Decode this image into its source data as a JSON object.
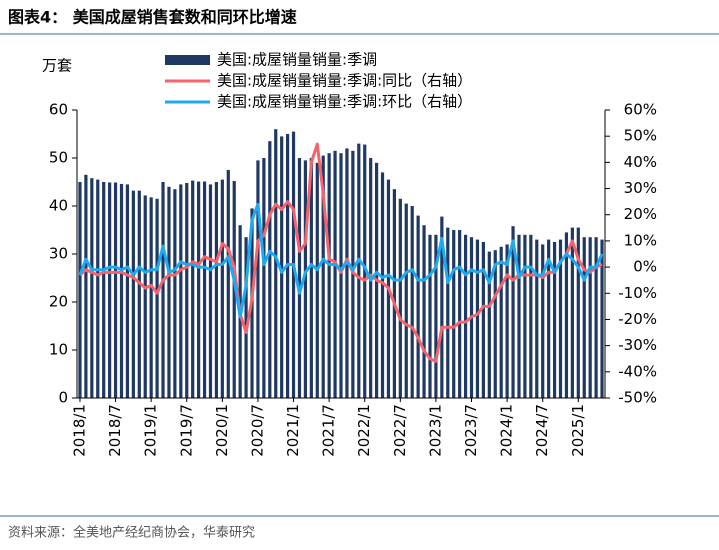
{
  "chart_data": {
    "type": "bar_line",
    "title": "图表4：  美国成屋销售套数和同环比增速",
    "y_label": "万套",
    "source": "资料来源：全美地产经纪商协会，华泰研究",
    "categories": [
      "2018/1",
      null,
      null,
      null,
      null,
      null,
      "2018/7",
      null,
      null,
      null,
      null,
      null,
      "2019/1",
      null,
      null,
      null,
      null,
      null,
      "2019/7",
      null,
      null,
      null,
      null,
      null,
      "2020/1",
      null,
      null,
      null,
      null,
      null,
      "2020/7",
      null,
      null,
      null,
      null,
      null,
      "2021/1",
      null,
      null,
      null,
      null,
      null,
      "2021/7",
      null,
      null,
      null,
      null,
      null,
      "2022/1",
      null,
      null,
      null,
      null,
      null,
      "2022/7",
      null,
      null,
      null,
      null,
      null,
      "2023/1",
      null,
      null,
      null,
      null,
      null,
      "2023/7",
      null,
      null,
      null,
      null,
      null,
      "2024/1",
      null,
      null,
      null,
      null,
      null,
      "2024/7",
      null,
      null,
      null,
      null,
      null,
      "2025/1",
      null,
      null,
      null,
      null
    ],
    "series": [
      {
        "name": "美国:成屋销量销量:季调",
        "type": "bar",
        "color": "#1f3864",
        "axis": "y",
        "values": [
          45.0,
          46.5,
          45.8,
          45.5,
          45.0,
          44.9,
          44.9,
          44.6,
          44.5,
          43.2,
          43.2,
          42.2,
          41.8,
          41.5,
          45.0,
          44.0,
          43.5,
          44.5,
          44.8,
          45.3,
          45.1,
          45.1,
          44.5,
          45.0,
          45.5,
          47.5,
          45.2,
          36.0,
          33.5,
          39.5,
          49.5,
          50.0,
          53.5,
          56.0,
          54.5,
          55.0,
          55.5,
          50.0,
          49.5,
          50.0,
          49.0,
          50.5,
          51.0,
          51.5,
          51.0,
          52.0,
          51.5,
          53.0,
          52.8,
          50.0,
          49.0,
          47.0,
          45.5,
          43.5,
          41.5,
          40.5,
          40.0,
          38.0,
          36.0,
          34.0,
          34.0,
          37.8,
          35.5,
          35.0,
          35.0,
          34.0,
          33.5,
          33.0,
          32.5,
          30.5,
          30.8,
          31.5,
          32.0,
          35.8,
          34.0,
          34.0,
          34.0,
          33.0,
          32.0,
          33.0,
          32.5,
          33.0,
          34.5,
          35.5,
          35.5,
          33.5,
          33.5,
          33.5,
          33.0
        ]
      },
      {
        "name": "美国:成屋销量销量:季调:同比（右轴）",
        "type": "line",
        "color": "#f4646a",
        "axis": "y2",
        "values": [
          -3,
          -1,
          -2,
          -3,
          -2,
          -2,
          -2,
          -2,
          -3,
          -4,
          -6,
          -8,
          -7,
          -10,
          -5,
          -3,
          -3,
          -1,
          0,
          2,
          1,
          4,
          3,
          2,
          9,
          7,
          0,
          -18,
          -25,
          -12,
          10,
          12,
          20,
          24,
          22,
          25,
          22,
          6,
          9,
          40,
          47,
          28,
          3,
          2,
          -2,
          3,
          -2,
          -4,
          -5,
          -3,
          -5,
          -6,
          -8,
          -14,
          -20,
          -22,
          -23,
          -27,
          -32,
          -35,
          -36,
          -23,
          -23,
          -23,
          -21,
          -21,
          -19,
          -18,
          -15,
          -15,
          -11,
          -7,
          -3,
          -5,
          -3,
          -3,
          -3,
          -3,
          -4,
          -2,
          -2,
          2,
          5,
          10,
          3,
          -1,
          -2,
          0,
          1
        ]
      },
      {
        "name": "美国:成屋销量销量:季调:环比（右轴）",
        "type": "line",
        "color": "#1eaaf1",
        "axis": "y2",
        "values": [
          -3,
          3,
          -1,
          -1,
          -1,
          0,
          0,
          -1,
          0,
          -3,
          0,
          -2,
          -1,
          -1,
          8,
          -2,
          -1,
          2,
          1,
          1,
          0,
          0,
          -1,
          1,
          1,
          4,
          -5,
          -19,
          -7,
          18,
          24,
          1,
          6,
          4,
          -2,
          1,
          1,
          -10,
          -2,
          1,
          -1,
          3,
          1,
          1,
          -1,
          2,
          -1,
          3,
          0,
          -5,
          -2,
          -4,
          -3,
          -5,
          -5,
          -2,
          -1,
          -5,
          -5,
          -3,
          0,
          11,
          -6,
          -1,
          0,
          -3,
          -1,
          -2,
          -1,
          -6,
          1,
          2,
          1,
          10,
          -4,
          0,
          0,
          -3,
          -3,
          3,
          -2,
          2,
          5,
          3,
          0,
          -5,
          0,
          0,
          5
        ]
      }
    ],
    "ylim": [
      0,
      60
    ],
    "yticks": [
      0,
      10,
      20,
      30,
      40,
      50,
      60
    ],
    "y2lim": [
      -50,
      60
    ],
    "y2ticks": [
      {
        "value": -50,
        "label": "-50%"
      },
      {
        "value": -40,
        "label": "-40%"
      },
      {
        "value": -30,
        "label": "-30%"
      },
      {
        "value": -20,
        "label": "-20%"
      },
      {
        "value": -10,
        "label": "-10%"
      },
      {
        "value": 0,
        "label": "0%"
      },
      {
        "value": 10,
        "label": "10%"
      },
      {
        "value": 20,
        "label": "20%"
      },
      {
        "value": 30,
        "label": "30%"
      },
      {
        "value": 40,
        "label": "40%"
      },
      {
        "value": 50,
        "label": "50%"
      },
      {
        "value": 60,
        "label": "60%"
      }
    ],
    "legend": "top-center"
  }
}
